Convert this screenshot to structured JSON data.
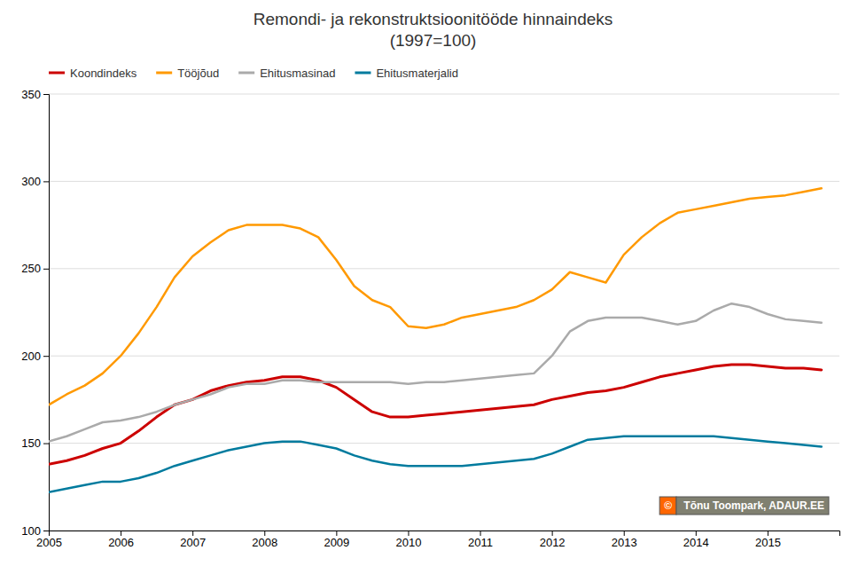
{
  "chart_data": {
    "type": "line",
    "title": "Remondi- ja rekonstruktsioonitööde hinnaindeks\n(1997=100)",
    "x": [
      2005,
      2005.25,
      2005.5,
      2005.75,
      2006,
      2006.25,
      2006.5,
      2006.75,
      2007,
      2007.25,
      2007.5,
      2007.75,
      2008,
      2008.25,
      2008.5,
      2008.75,
      2009,
      2009.25,
      2009.5,
      2009.75,
      2010,
      2010.25,
      2010.5,
      2010.75,
      2011,
      2011.25,
      2011.5,
      2011.75,
      2012,
      2012.25,
      2012.5,
      2012.75,
      2013,
      2013.25,
      2013.5,
      2013.75,
      2014,
      2014.25,
      2014.5,
      2014.75,
      2015,
      2015.25,
      2015.5,
      2015.75
    ],
    "series": [
      {
        "name": "Koondindeks",
        "color": "#cc0000",
        "values": [
          138,
          140,
          143,
          147,
          150,
          157,
          165,
          172,
          175,
          180,
          183,
          185,
          186,
          188,
          188,
          186,
          182,
          175,
          168,
          165,
          165,
          166,
          167,
          168,
          169,
          170,
          171,
          172,
          175,
          177,
          179,
          180,
          182,
          185,
          188,
          190,
          192,
          194,
          195,
          195,
          194,
          193,
          193,
          192
        ]
      },
      {
        "name": "Tööjõud",
        "color": "#ff9900",
        "values": [
          172,
          178,
          183,
          190,
          200,
          213,
          228,
          245,
          257,
          265,
          272,
          275,
          275,
          275,
          273,
          268,
          255,
          240,
          232,
          228,
          217,
          216,
          218,
          222,
          224,
          226,
          228,
          232,
          238,
          248,
          245,
          242,
          258,
          268,
          276,
          282,
          284,
          286,
          288,
          290,
          291,
          292,
          294,
          296
        ]
      },
      {
        "name": "Ehitusmasinad",
        "color": "#aaaaaa",
        "values": [
          151,
          154,
          158,
          162,
          163,
          165,
          168,
          172,
          175,
          178,
          182,
          184,
          184,
          186,
          186,
          185,
          185,
          185,
          185,
          185,
          184,
          185,
          185,
          186,
          187,
          188,
          189,
          190,
          200,
          214,
          220,
          222,
          222,
          222,
          220,
          218,
          220,
          226,
          230,
          228,
          224,
          221,
          220,
          219
        ]
      },
      {
        "name": "Ehitusmaterjalid",
        "color": "#007b9e",
        "values": [
          122,
          124,
          126,
          128,
          128,
          130,
          133,
          137,
          140,
          143,
          146,
          148,
          150,
          151,
          151,
          149,
          147,
          143,
          140,
          138,
          137,
          137,
          137,
          137,
          138,
          139,
          140,
          141,
          144,
          148,
          152,
          153,
          154,
          154,
          154,
          154,
          154,
          154,
          153,
          152,
          151,
          150,
          149,
          148
        ]
      }
    ],
    "xlim": [
      2005,
      2016
    ],
    "xticks": [
      2005,
      2006,
      2007,
      2008,
      2009,
      2010,
      2011,
      2012,
      2013,
      2014,
      2015
    ],
    "ylim": [
      100,
      350
    ],
    "yticks": [
      100,
      150,
      200,
      250,
      300,
      350
    ],
    "grid": true,
    "legend": "upper left",
    "annotations": [
      "©",
      " Tõnu Toompark, ADAUR.EE"
    ]
  }
}
